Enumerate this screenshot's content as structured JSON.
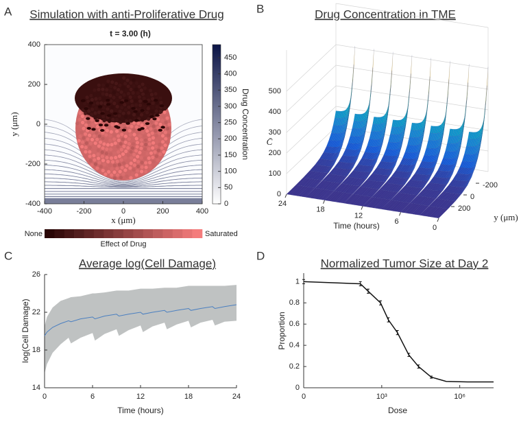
{
  "chart_data": [
    {
      "panel": "A",
      "type": "heatmap",
      "title": "Simulation with anti-Proliferative Drug",
      "subtitle": "t = 3.00 (h)",
      "xlabel": "x (μm)",
      "ylabel": "y (μm)",
      "xlim": [
        -400,
        400
      ],
      "ylim": [
        -400,
        400
      ],
      "xticks": [
        -400,
        -200,
        0,
        200,
        400
      ],
      "yticks": [
        -400,
        -200,
        0,
        200,
        400
      ],
      "colorbar": {
        "label": "Drug Concentration",
        "lim": [
          0,
          490
        ],
        "ticks": [
          0,
          50,
          100,
          150,
          200,
          250,
          300,
          350,
          400,
          450
        ],
        "colors": [
          "#ffffff",
          "#0b1446"
        ]
      },
      "effect_colorbar": {
        "label": "Effect of Drug",
        "low": "None",
        "high": "Saturated",
        "colors": [
          "#2a0606",
          "#f47c7c"
        ]
      }
    },
    {
      "panel": "B",
      "type": "surface",
      "title": "Drug Concentration in TME",
      "xlabel": "Time (hours)",
      "ylabel": "y (μm)",
      "zlabel": "C̄",
      "xlim": [
        0,
        24
      ],
      "x_reversed": true,
      "xticks": [
        24,
        18,
        12,
        6,
        0
      ],
      "ylim": [
        -400,
        400
      ],
      "yticks": [
        -200,
        0,
        200
      ],
      "zlim": [
        0,
        700
      ],
      "zticks": [
        0,
        100,
        200,
        300,
        400,
        500
      ]
    },
    {
      "panel": "C",
      "type": "line",
      "title": "Average log(Cell Damage)",
      "xlabel": "Time (hours)",
      "ylabel": "log(Cell Damage)",
      "xlim": [
        0,
        24
      ],
      "xticks": [
        0,
        6,
        12,
        18,
        24
      ],
      "ylim": [
        14,
        26
      ],
      "yticks": [
        14,
        18,
        22,
        26
      ],
      "x": [
        0,
        0.3,
        1,
        2,
        3,
        3.3,
        4.5,
        6,
        6.3,
        7.5,
        9,
        9.3,
        10.5,
        12,
        12.3,
        13.5,
        15,
        15.3,
        16.5,
        18,
        18.3,
        19.5,
        21,
        21.3,
        22.5,
        24
      ],
      "values": [
        19.5,
        19.9,
        20.4,
        20.8,
        21.1,
        21.0,
        21.3,
        21.5,
        21.3,
        21.6,
        21.8,
        21.6,
        21.8,
        22.0,
        21.8,
        22.0,
        22.2,
        22.0,
        22.2,
        22.4,
        22.2,
        22.4,
        22.6,
        22.4,
        22.6,
        22.8
      ],
      "color": "#4a7fc0",
      "band": {
        "color": "#bfc2c2",
        "upper": [
          20.5,
          21.5,
          22.5,
          23.2,
          23.5,
          23.6,
          23.7,
          24.0,
          24.0,
          24.1,
          24.3,
          24.3,
          24.3,
          24.5,
          24.5,
          24.5,
          24.6,
          24.6,
          24.6,
          24.8,
          24.8,
          24.8,
          24.8,
          24.8,
          24.8,
          24.9
        ],
        "lower": [
          15.5,
          16.5,
          17.7,
          18.6,
          19.3,
          18.7,
          19.3,
          19.8,
          19.0,
          19.7,
          20.2,
          19.5,
          20.1,
          20.6,
          19.9,
          20.5,
          20.9,
          20.2,
          20.7,
          21.1,
          20.4,
          20.9,
          21.2,
          20.6,
          21.0,
          21.1
        ]
      }
    },
    {
      "panel": "D",
      "type": "line",
      "title": "Normalized Tumor Size at Day 2",
      "xlabel": "Dose",
      "ylabel": "Proportion",
      "xscale": "log",
      "xlim": [
        0,
        20000000
      ],
      "xticks": [
        0,
        {
          "value": 1000,
          "label": "10³"
        },
        {
          "value": 1000000,
          "label": "10⁶"
        }
      ],
      "ylim": [
        0,
        1.08
      ],
      "yticks": [
        0,
        0.2,
        0.4,
        0.6,
        0.8,
        1
      ],
      "x": [
        0,
        150,
        300,
        900,
        1800,
        4000,
        11000,
        26000,
        80000,
        300000,
        2000000,
        20000000
      ],
      "values": [
        1,
        0.98,
        0.91,
        0.8,
        0.64,
        0.52,
        0.31,
        0.2,
        0.1,
        0.06,
        0.055,
        0.055
      ],
      "errors": [
        0.02,
        0.02,
        0.02,
        0.02,
        0.02,
        0.02,
        0.015,
        0.015,
        0.01,
        null,
        null,
        null
      ],
      "color": "#111111"
    }
  ]
}
